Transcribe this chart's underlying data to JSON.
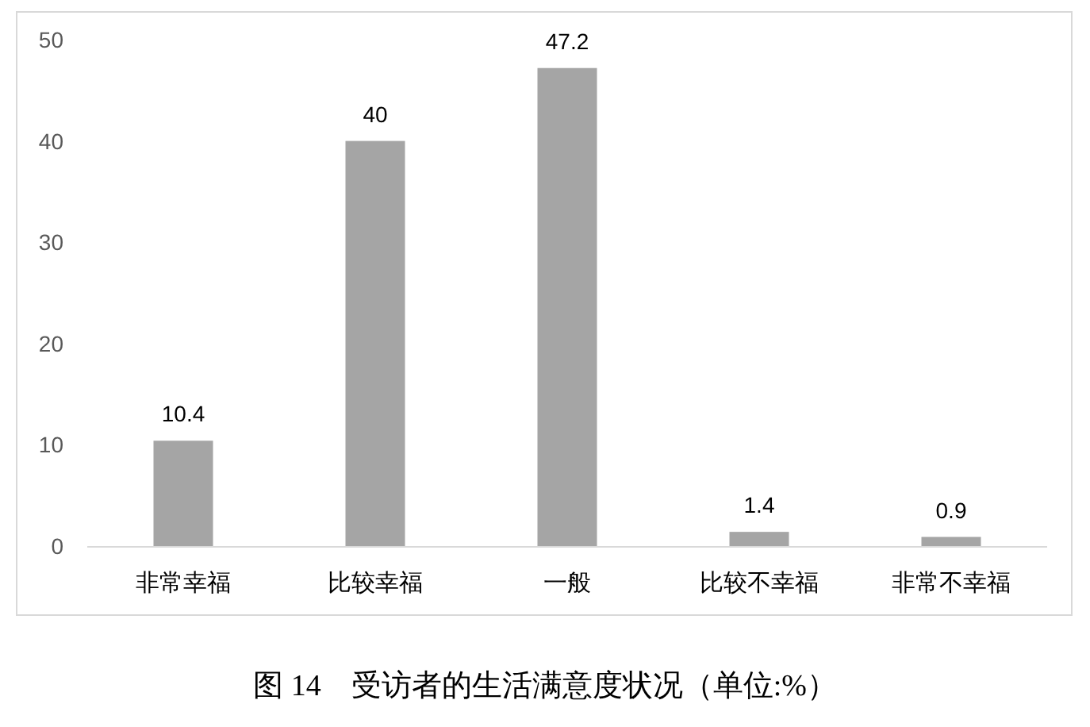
{
  "chart_data": {
    "type": "bar",
    "categories": [
      "非常幸福",
      "比较幸福",
      "一般",
      "比较不幸福",
      "非常不幸福"
    ],
    "values": [
      10.4,
      40,
      47.2,
      1.4,
      0.9
    ],
    "color": "#a5a5a5",
    "ylim": [
      0,
      50
    ],
    "yticks": [
      0,
      10,
      20,
      30,
      40,
      50
    ],
    "data_labels": true,
    "annotations": [
      "图 14　受访者的生活满意度状况（单位:%）"
    ]
  }
}
